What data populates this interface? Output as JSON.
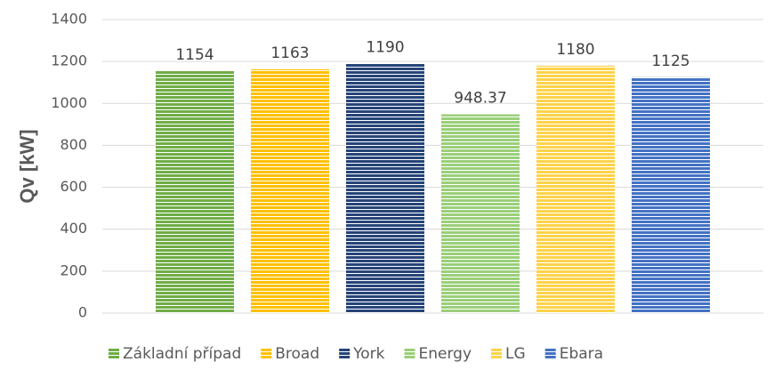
{
  "chart_data": {
    "type": "bar",
    "y_label": "Qv [kW]",
    "categories": [
      null
    ],
    "series": [
      {
        "name": "Základní případ",
        "color": "#70ad47",
        "values": [
          1154
        ]
      },
      {
        "name": "Broad",
        "color": "#ffc000",
        "values": [
          1163
        ]
      },
      {
        "name": "York",
        "color": "#264478",
        "values": [
          1190
        ]
      },
      {
        "name": "Energy",
        "color": "#9bcf7a",
        "values": [
          948.37
        ]
      },
      {
        "name": "LG",
        "color": "#ffd34a",
        "values": [
          1180
        ]
      },
      {
        "name": "Ebara",
        "color": "#4472c4",
        "values": [
          1125
        ]
      }
    ],
    "ylim": [
      0,
      1400
    ],
    "yticks": [
      0,
      200,
      400,
      600,
      800,
      1000,
      1200,
      1400
    ],
    "grid": true,
    "legend": "bottom",
    "data_labels": true
  }
}
